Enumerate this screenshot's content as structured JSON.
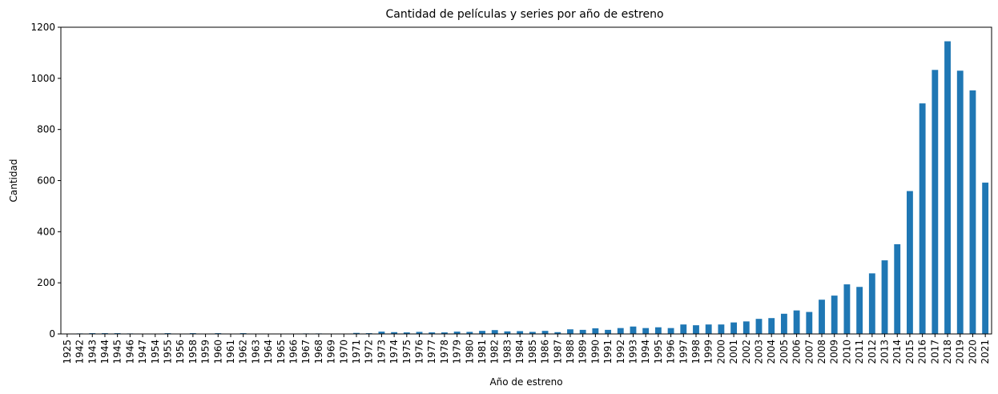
{
  "chart_data": {
    "type": "bar",
    "title": "Cantidad de películas y series por año de estreno",
    "xlabel": "Año de estreno",
    "ylabel": "Cantidad",
    "ylim": [
      0,
      1200
    ],
    "yticks": [
      0,
      200,
      400,
      600,
      800,
      1000,
      1200
    ],
    "grid": false,
    "color": "#1f77b4",
    "categories": [
      "1925",
      "1942",
      "1943",
      "1944",
      "1945",
      "1946",
      "1947",
      "1954",
      "1955",
      "1956",
      "1958",
      "1959",
      "1960",
      "1961",
      "1962",
      "1963",
      "1964",
      "1965",
      "1966",
      "1967",
      "1968",
      "1969",
      "1970",
      "1971",
      "1972",
      "1973",
      "1974",
      "1975",
      "1976",
      "1977",
      "1978",
      "1979",
      "1980",
      "1981",
      "1982",
      "1983",
      "1984",
      "1985",
      "1986",
      "1987",
      "1988",
      "1989",
      "1990",
      "1991",
      "1992",
      "1993",
      "1994",
      "1995",
      "1996",
      "1997",
      "1998",
      "1999",
      "2000",
      "2001",
      "2002",
      "2003",
      "2004",
      "2005",
      "2006",
      "2007",
      "2008",
      "2009",
      "2010",
      "2011",
      "2012",
      "2013",
      "2014",
      "2015",
      "2016",
      "2017",
      "2018",
      "2019",
      "2020",
      "2021"
    ],
    "values": [
      1,
      2,
      3,
      3,
      3,
      2,
      1,
      1,
      3,
      1,
      3,
      1,
      3,
      1,
      3,
      1,
      1,
      1,
      1,
      2,
      2,
      1,
      1,
      4,
      3,
      9,
      7,
      6,
      8,
      6,
      6,
      9,
      8,
      12,
      15,
      10,
      11,
      8,
      12,
      7,
      18,
      16,
      22,
      16,
      23,
      29,
      23,
      26,
      23,
      37,
      34,
      37,
      37,
      45,
      49,
      59,
      62,
      79,
      92,
      86,
      134,
      150,
      194,
      184,
      237,
      288,
      351,
      559,
      902,
      1033,
      1145,
      1030,
      953,
      592
    ]
  }
}
